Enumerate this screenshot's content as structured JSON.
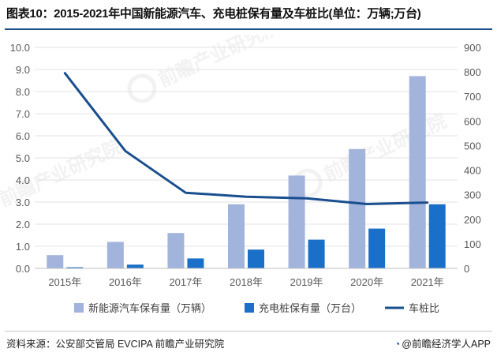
{
  "title": "图表10：2015-2021年中国新能源汽车、充电桩保有量及车桩比(单位：万辆;万台)",
  "source": "资料来源：公安部交管局 EVCIPA 前瞻产业研究院",
  "brand": "@前瞻经济学人APP",
  "watermark": "前瞻产业研究院",
  "colors": {
    "ev": "#a2b4dc",
    "charger": "#1a6fc8",
    "ratio": "#1a4f8f",
    "grid": "#e3e3e3",
    "axis_text": "#595959"
  },
  "chart_data": {
    "type": "bar+line",
    "title": "图表10：2015-2021年中国新能源汽车、充电桩保有量及车桩比(单位：万辆;万台)",
    "categories": [
      "2015年",
      "2016年",
      "2017年",
      "2018年",
      "2019年",
      "2020年",
      "2021年"
    ],
    "series": [
      {
        "name": "新能源汽车保有量（万辆）",
        "type": "bar",
        "axis": "left",
        "values": [
          0.6,
          1.2,
          1.6,
          2.9,
          4.2,
          5.4,
          8.7
        ]
      },
      {
        "name": "充电桩保有量（万台）",
        "type": "bar",
        "axis": "left",
        "values": [
          0.05,
          0.17,
          0.45,
          0.85,
          1.3,
          1.8,
          2.9
        ]
      },
      {
        "name": "车桩比",
        "type": "line",
        "axis": "right",
        "values": [
          795,
          478,
          308,
          292,
          285,
          262,
          268
        ]
      }
    ],
    "y_left": {
      "min": 0,
      "max": 10,
      "step": 1,
      "ticks": [
        "0.0",
        "1.0",
        "2.0",
        "3.0",
        "4.0",
        "5.0",
        "6.0",
        "7.0",
        "8.0",
        "9.0",
        "10.0"
      ]
    },
    "y_right": {
      "min": 0,
      "max": 900,
      "step": 100,
      "ticks": [
        "0",
        "100",
        "200",
        "300",
        "400",
        "500",
        "600",
        "700",
        "800",
        "900"
      ]
    },
    "grid": true,
    "legend": "bottom"
  }
}
